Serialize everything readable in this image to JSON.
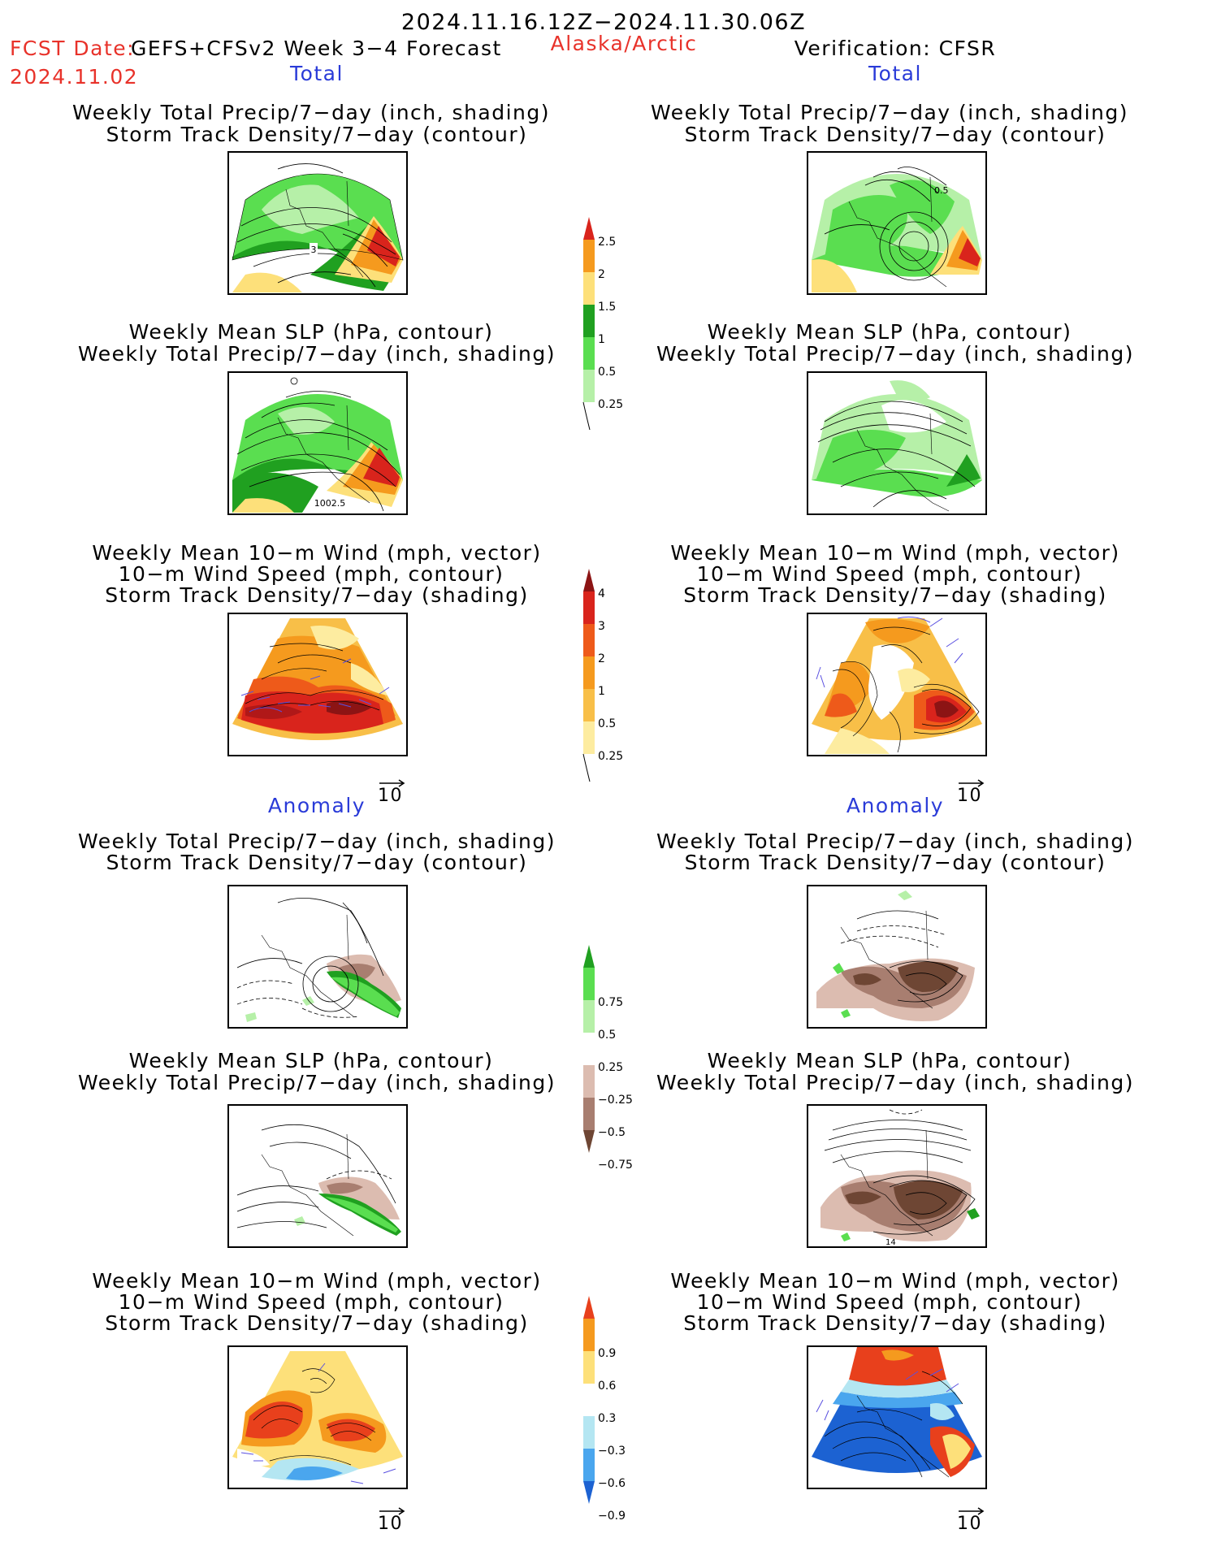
{
  "header": {
    "period": "2024.11.16.12Z−2024.11.30.06Z",
    "fcst_label": "FCST Date:",
    "fcst_model": "GEFS+CFSv2 Week 3−4 Forecast",
    "fcst_date": "2024.11.02",
    "region": "Alaska/Arctic",
    "verification": "Verification: CFSR"
  },
  "sections": {
    "total_left": "Total",
    "total_right": "Total",
    "anomaly_left": "Anomaly",
    "anomaly_right": "Anomaly"
  },
  "titles": {
    "precip_std": [
      "Weekly Total Precip/7−day (inch, shading)",
      "Storm Track Density/7−day (contour)"
    ],
    "slp_precip": [
      "Weekly Mean SLP (hPa, contour)",
      "Weekly Total Precip/7−day (inch, shading)"
    ],
    "wind_std": [
      "Weekly Mean 10−m Wind (mph, vector)",
      "10−m Wind Speed (mph, contour)",
      "Storm Track Density/7−day (shading)"
    ]
  },
  "panel_labels": {
    "p1_contour": "3",
    "p2_contour": "0.5",
    "p3_contour": "1002.5",
    "p10_contour": "14"
  },
  "vector_ref": "10",
  "colorbars": {
    "precip_total": {
      "labels": [
        "2.5",
        "2",
        "1.5",
        "1",
        "0.5",
        "0.25"
      ],
      "colors": [
        "#d9241c",
        "#f59a1e",
        "#fde07a",
        "#20a020",
        "#5ade50",
        "#b6f0a8"
      ]
    },
    "std_total": {
      "labels": [
        "4",
        "3",
        "2",
        "1",
        "0.5",
        "0.25"
      ],
      "colors": [
        "#8c1414",
        "#d9241c",
        "#ee5a1a",
        "#f59a1e",
        "#f8bf48",
        "#fdeca0"
      ]
    },
    "precip_anom": {
      "labels": [
        "0.75",
        "0.5",
        "0.25",
        "−0.25",
        "−0.5",
        "−0.75"
      ],
      "colors": [
        "#20a020",
        "#5ade50",
        "#b6f0a8",
        "#ffffff",
        "#dcbcb0",
        "#a87e70",
        "#6e4634"
      ]
    },
    "std_anom": {
      "labels": [
        "0.9",
        "0.6",
        "0.3",
        "−0.3",
        "−0.6",
        "−0.9"
      ],
      "colors": [
        "#e8401c",
        "#f59a1e",
        "#fde07a",
        "#ffffff",
        "#b4e6f2",
        "#4aa6ee",
        "#1c62d2"
      ]
    }
  }
}
